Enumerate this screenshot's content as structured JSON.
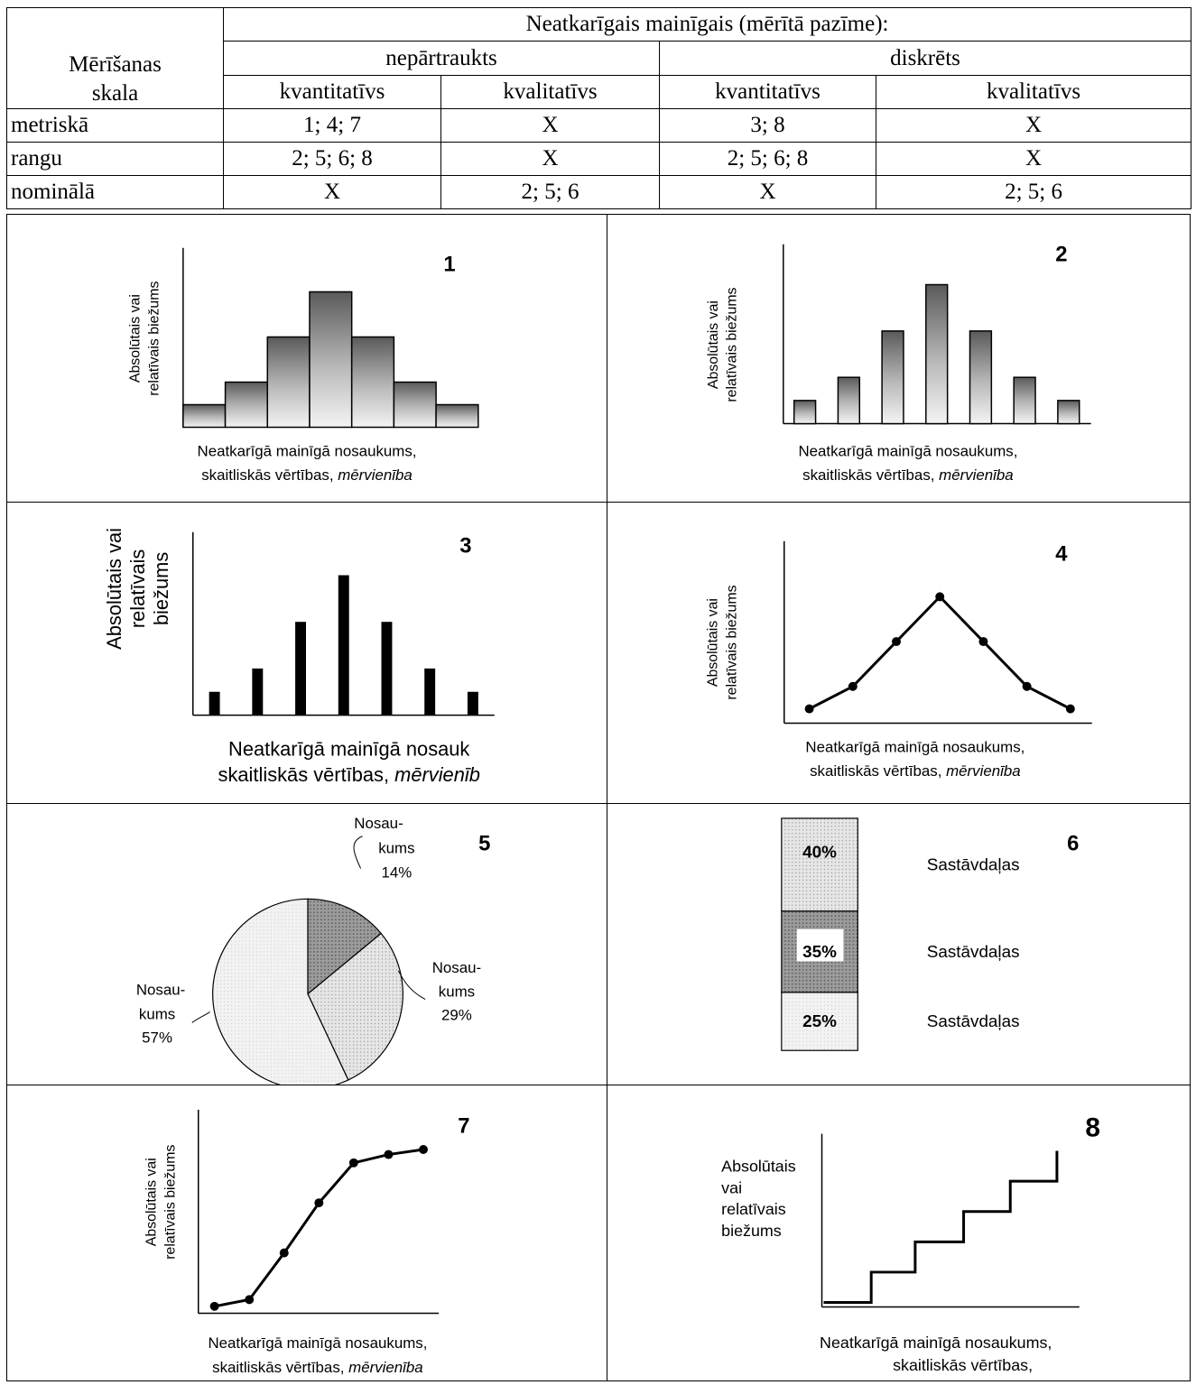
{
  "table": {
    "corner_label": "Mērīšanas skala",
    "top_header": "Neatkarīgais mainīgais (mērītā pazīme):",
    "group_headers": [
      "nepārtraukts",
      "diskrēts"
    ],
    "sub_headers": [
      "kvantitatīvs",
      "kvalitatīvs",
      "kvantitatīvs",
      "kvalitatīvs"
    ],
    "rows": [
      {
        "label": "metriskā",
        "cells": [
          "1; 4; 7",
          "X",
          "3; 8",
          "X"
        ]
      },
      {
        "label": "rangu",
        "cells": [
          "2; 5; 6; 8",
          "X",
          "2; 5; 6; 8",
          "X"
        ]
      },
      {
        "label": "nominālā",
        "cells": [
          "X",
          "2; 5; 6",
          "X",
          "2; 5; 6"
        ]
      }
    ]
  },
  "chart_data": [
    {
      "number": "1",
      "type": "histogram",
      "values": [
        1,
        2,
        4,
        6,
        4,
        2,
        1
      ],
      "ylabel": [
        "Absolūtais vai",
        "relatīvais biežums"
      ],
      "xlabel": [
        "Neatkarīgā mainīgā nosaukums,",
        "skaitliskās vērtības, ",
        "mērvienība"
      ]
    },
    {
      "number": "2",
      "type": "bar",
      "values": [
        1,
        2,
        4,
        6,
        4,
        2,
        1
      ],
      "ylabel": [
        "Absolūtais vai",
        "relatīvais biežums"
      ],
      "xlabel": [
        "Neatkarīgā mainīgā nosaukums,",
        "skaitliskās vērtības, ",
        "mērvienība"
      ]
    },
    {
      "number": "3",
      "type": "bar",
      "values": [
        1,
        2,
        4,
        6,
        4,
        2,
        1
      ],
      "ylabel": [
        "Absolūtais vai",
        "relatīvais",
        "biežums"
      ],
      "xlabel": [
        "Neatkarīgā mainīgā nosauk",
        "skaitliskās vērtības, ",
        "mērvienīb"
      ]
    },
    {
      "number": "4",
      "type": "line",
      "values": [
        1,
        2,
        4,
        6,
        4,
        2,
        1
      ],
      "ylabel": [
        "Absolūtais vai",
        "relatīvais biežums"
      ],
      "xlabel": [
        "Neatkarīgā mainīgā nosaukums,",
        "skaitliskās vērtības, ",
        "mērvienība"
      ]
    },
    {
      "number": "5",
      "type": "pie",
      "slices": [
        {
          "label": "Nosau-kums",
          "value": 14
        },
        {
          "label": "Nosau-kums",
          "value": 29
        },
        {
          "label": "Nosau-kums",
          "value": 57
        }
      ],
      "labels": [
        [
          "Nosau-",
          "kums",
          "14%"
        ],
        [
          "Nosau-",
          "kums",
          "29%"
        ],
        [
          "Nosau-",
          "kums",
          "57%"
        ]
      ]
    },
    {
      "number": "6",
      "type": "stacked-bar",
      "segments": [
        {
          "label": "Sastāvdaļas",
          "value": 40,
          "text": "40%"
        },
        {
          "label": "Sastāvdaļas",
          "value": 35,
          "text": "35%"
        },
        {
          "label": "Sastāvdaļas",
          "value": 25,
          "text": "25%"
        }
      ]
    },
    {
      "number": "7",
      "type": "line",
      "values": [
        0.2,
        0.6,
        3.4,
        6.4,
        8.8,
        9.3,
        9.6
      ],
      "ylabel": [
        "Absolūtais vai",
        "relatīvais biežums"
      ],
      "xlabel": [
        "Neatkarīgā mainīgā nosaukums,",
        "skaitliskās vērtības, ",
        "mērvienība"
      ]
    },
    {
      "number": "8",
      "type": "step",
      "values": [
        0,
        1,
        2,
        3,
        4,
        5
      ],
      "ylabel": [
        "Absolūtais",
        "vai",
        "relatīvais",
        "biežums"
      ],
      "xlabel": [
        "Neatkarīgā mainīgā nosaukums,",
        "skaitliskās vērtības,"
      ]
    }
  ]
}
